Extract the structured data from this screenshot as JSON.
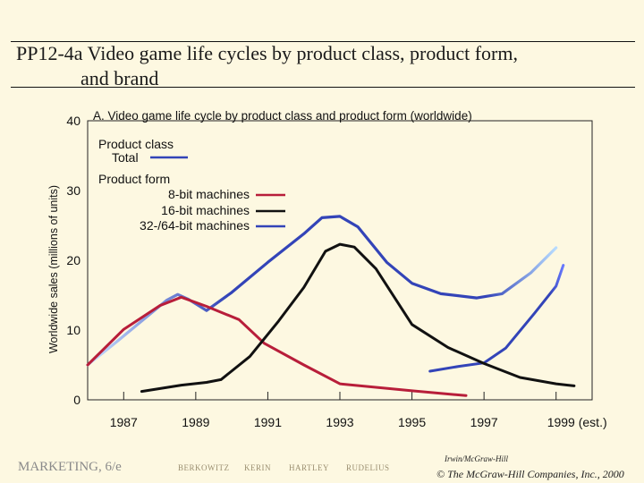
{
  "slide": {
    "title_line1": "PP12-4a  Video game life cycles by product class, product form,",
    "title_line2": "and brand"
  },
  "footer": {
    "course": "MARKETING, 6/e",
    "authors": [
      "BERKOWITZ",
      "KERIN",
      "HARTLEY",
      "RUDELIUS"
    ],
    "publisher": "Irwin/McGraw-Hill",
    "copyright": "© The McGraw-Hill Companies, Inc., 2000"
  },
  "colors": {
    "total": "#3344b8",
    "eight_bit": "#b81e3a",
    "sixteen_bit": "#111111",
    "thirtytwo_bit": "#3344b8",
    "plot_bg": "#fdf8e1"
  },
  "chart_data": {
    "type": "line",
    "title": "A.  Video game life cycle by product class and product form (worldwide)",
    "ylabel": "Worldwide sales (millions of units)",
    "ylim": [
      0,
      40
    ],
    "yticks": [
      0,
      10,
      20,
      30,
      40
    ],
    "xlim": [
      1986,
      2000
    ],
    "xticks": [
      1987,
      1989,
      1991,
      1993,
      1995,
      1997,
      1999
    ],
    "xtick_labels": [
      "1987",
      "1989",
      "1991",
      "1993",
      "1995",
      "1997",
      "1999 (est.)"
    ],
    "legend": {
      "class_heading": "Product class",
      "total_label": "Total",
      "form_heading": "Product form",
      "form_labels": [
        "8-bit machines",
        "16-bit machines",
        "32-/64-bit machines"
      ]
    },
    "series": [
      {
        "name": "Total",
        "color": "#3344b8",
        "points": [
          [
            1986.0,
            5.0
          ],
          [
            1986.8,
            8.3
          ],
          [
            1987.5,
            11.3
          ],
          [
            1988.2,
            14.3
          ],
          [
            1988.5,
            15.1
          ],
          [
            1988.8,
            14.4
          ],
          [
            1989.3,
            12.8
          ],
          [
            1990.0,
            15.4
          ],
          [
            1991.0,
            19.7
          ],
          [
            1992.0,
            23.8
          ],
          [
            1992.5,
            26.1
          ],
          [
            1993.0,
            26.3
          ],
          [
            1993.5,
            24.8
          ],
          [
            1994.3,
            19.7
          ],
          [
            1995.0,
            16.7
          ],
          [
            1995.8,
            15.2
          ],
          [
            1996.8,
            14.6
          ],
          [
            1997.5,
            15.2
          ],
          [
            1998.3,
            18.2
          ],
          [
            1999.0,
            21.8
          ]
        ],
        "fade_start": [
          0.3,
          0.85
        ]
      },
      {
        "name": "8-bit machines",
        "color": "#b81e3a",
        "points": [
          [
            1986.0,
            5.0
          ],
          [
            1987.0,
            10.1
          ],
          [
            1988.0,
            13.5
          ],
          [
            1988.6,
            14.7
          ],
          [
            1989.3,
            13.4
          ],
          [
            1990.2,
            11.5
          ],
          [
            1990.9,
            8.1
          ],
          [
            1992.0,
            5.0
          ],
          [
            1993.0,
            2.3
          ],
          [
            1995.0,
            1.3
          ],
          [
            1996.5,
            0.6
          ]
        ]
      },
      {
        "name": "16-bit machines",
        "color": "#111111",
        "points": [
          [
            1987.5,
            1.2
          ],
          [
            1988.6,
            2.1
          ],
          [
            1989.3,
            2.5
          ],
          [
            1989.7,
            2.9
          ],
          [
            1990.5,
            6.2
          ],
          [
            1991.3,
            11.3
          ],
          [
            1992.0,
            16.1
          ],
          [
            1992.6,
            21.3
          ],
          [
            1993.0,
            22.3
          ],
          [
            1993.4,
            21.9
          ],
          [
            1994.0,
            18.8
          ],
          [
            1995.0,
            10.8
          ],
          [
            1996.0,
            7.5
          ],
          [
            1997.0,
            5.2
          ],
          [
            1998.0,
            3.2
          ],
          [
            1999.0,
            2.3
          ],
          [
            1999.5,
            2.0
          ]
        ]
      },
      {
        "name": "32-/64-bit machines",
        "color": "#3344b8",
        "points": [
          [
            1995.5,
            4.1
          ],
          [
            1996.3,
            4.8
          ],
          [
            1997.0,
            5.3
          ],
          [
            1997.6,
            7.4
          ],
          [
            1998.4,
            12.4
          ],
          [
            1999.0,
            16.3
          ],
          [
            1999.2,
            19.3
          ]
        ],
        "fade_start": [
          0.0,
          0.9
        ]
      }
    ]
  }
}
